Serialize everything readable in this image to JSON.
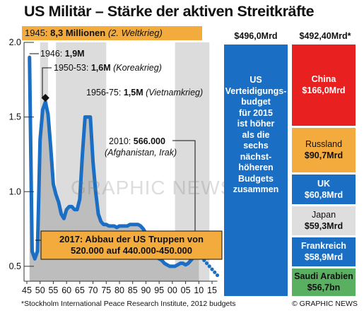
{
  "title": "US Militär – Stärke der aktiven Streitkräfte",
  "banner": {
    "year": "1945:",
    "value": "8,3 Millionen",
    "note": "(2. Weltkrieg)"
  },
  "chart_data": [
    {
      "type": "area",
      "ylim": [
        0.4,
        2.0
      ],
      "xlim": [
        1945,
        2017
      ],
      "yticks": [
        0.5,
        1.0,
        1.5,
        2.0
      ],
      "ytick_labels": [
        "0.5",
        "1.0",
        "1.5",
        "2.0"
      ],
      "xticks": [
        1945,
        1950,
        1955,
        1960,
        1965,
        1970,
        1975,
        1980,
        1985,
        1990,
        1995,
        2000,
        2005,
        2010,
        2015
      ],
      "xtick_labels": [
        "45",
        "50",
        "55",
        "60",
        "65",
        "70",
        "75",
        "80",
        "85",
        "90",
        "95",
        "00",
        "05",
        "10",
        "15"
      ],
      "grid": false,
      "series": [
        {
          "x": [
            1946,
            1947,
            1948,
            1949,
            1950,
            1951,
            1952,
            1953,
            1954,
            1955,
            1956,
            1957,
            1958,
            1959,
            1960,
            1961,
            1962,
            1963,
            1964,
            1965,
            1966,
            1967,
            1968,
            1969,
            1970,
            1971,
            1972,
            1973,
            1974,
            1975,
            1976,
            1977,
            1978,
            1979,
            1980,
            1981,
            1982,
            1983,
            1984,
            1985,
            1986,
            1987,
            1988,
            1989,
            1990,
            1991,
            1992,
            1993,
            1994,
            1995,
            1996,
            1997,
            1998,
            1999,
            2000,
            2001,
            2002,
            2003,
            2004,
            2005,
            2006,
            2007,
            2008,
            2009,
            2010
          ],
          "y": [
            1.9,
            0.6,
            0.55,
            0.6,
            1.35,
            1.55,
            1.6,
            1.52,
            1.3,
            1.05,
            0.98,
            0.93,
            0.85,
            0.82,
            0.88,
            0.9,
            0.9,
            0.88,
            0.88,
            0.95,
            1.25,
            1.5,
            1.5,
            1.5,
            1.2,
            1.0,
            0.85,
            0.8,
            0.78,
            0.78,
            0.77,
            0.77,
            0.77,
            0.76,
            0.77,
            0.77,
            0.77,
            0.77,
            0.78,
            0.78,
            0.78,
            0.78,
            0.77,
            0.75,
            0.72,
            0.69,
            0.63,
            0.6,
            0.57,
            0.55,
            0.54,
            0.52,
            0.51,
            0.5,
            0.5,
            0.5,
            0.51,
            0.52,
            0.52,
            0.51,
            0.52,
            0.54,
            0.56,
            0.57,
            0.58
          ]
        },
        {
          "x": [
            2010,
            2011,
            2012,
            2013,
            2014,
            2015,
            2016,
            2017
          ],
          "y": [
            0.58,
            0.56,
            0.54,
            0.52,
            0.5,
            0.48,
            0.46,
            0.44
          ]
        }
      ],
      "war_periods": [
        [
          1950,
          1953
        ],
        [
          1956,
          1975
        ],
        [
          2001,
          2014
        ]
      ],
      "annotations": [
        {
          "year": "1946:",
          "value": "1,9M",
          "note": ""
        },
        {
          "year": "1950-53:",
          "value": "1,6M",
          "note": "(Koreakrieg)"
        },
        {
          "year": "1956-75:",
          "value": "1,5M",
          "note": "(Vietnamkrieg)"
        },
        {
          "year": "2010:",
          "value": "566.000",
          "note": "(Afghanistan, Irak)"
        }
      ],
      "callout_lines": [
        "2017: Abbau der US Truppen von",
        "520.000 auf 440.000-450.000"
      ]
    },
    {
      "type": "bar",
      "title_us": "$496,0Mrd",
      "title_others": "$492,40Mrd*",
      "us_text": [
        "US",
        "Verteidigungs-",
        "budget",
        "für 2015",
        "ist höher",
        "als die",
        "sechs",
        "nächst-",
        "höheren",
        "Budgets",
        "zusammen"
      ],
      "segments": [
        {
          "name": "China",
          "value": "$166,0Mrd",
          "amount": 166.0,
          "color": "#e8201f",
          "text_color": "#ffffff"
        },
        {
          "name": "Russland",
          "value": "$90,7Mrd",
          "amount": 90.7,
          "color": "#f2ab3c",
          "text_color": "#111111"
        },
        {
          "name": "UK",
          "value": "$60,8Mrd",
          "amount": 60.8,
          "color": "#1a6fc4",
          "text_color": "#ffffff"
        },
        {
          "name": "Japan",
          "value": "$59,3Mrd",
          "amount": 59.3,
          "color": "#dedede",
          "text_color": "#111111"
        },
        {
          "name": "Frankreich",
          "value": "$58,9Mrd",
          "amount": 58.9,
          "color": "#1a6fc4",
          "text_color": "#ffffff"
        },
        {
          "name": "Saudi Arabien",
          "value": "$56,7bn",
          "amount": 56.7,
          "color": "#59b061",
          "text_color": "#111111"
        }
      ]
    }
  ],
  "footer": {
    "source": "*Stockholm International Peace Research Institute, 2012 budgets",
    "credit": "© GRAPHIC NEWS"
  },
  "watermark": "GRAPHIC NEWS",
  "colors": {
    "line": "#1a6fc4",
    "area": "#bdbdbd",
    "war_band": "#dcdcdc",
    "banner": "#f2ab3c"
  }
}
